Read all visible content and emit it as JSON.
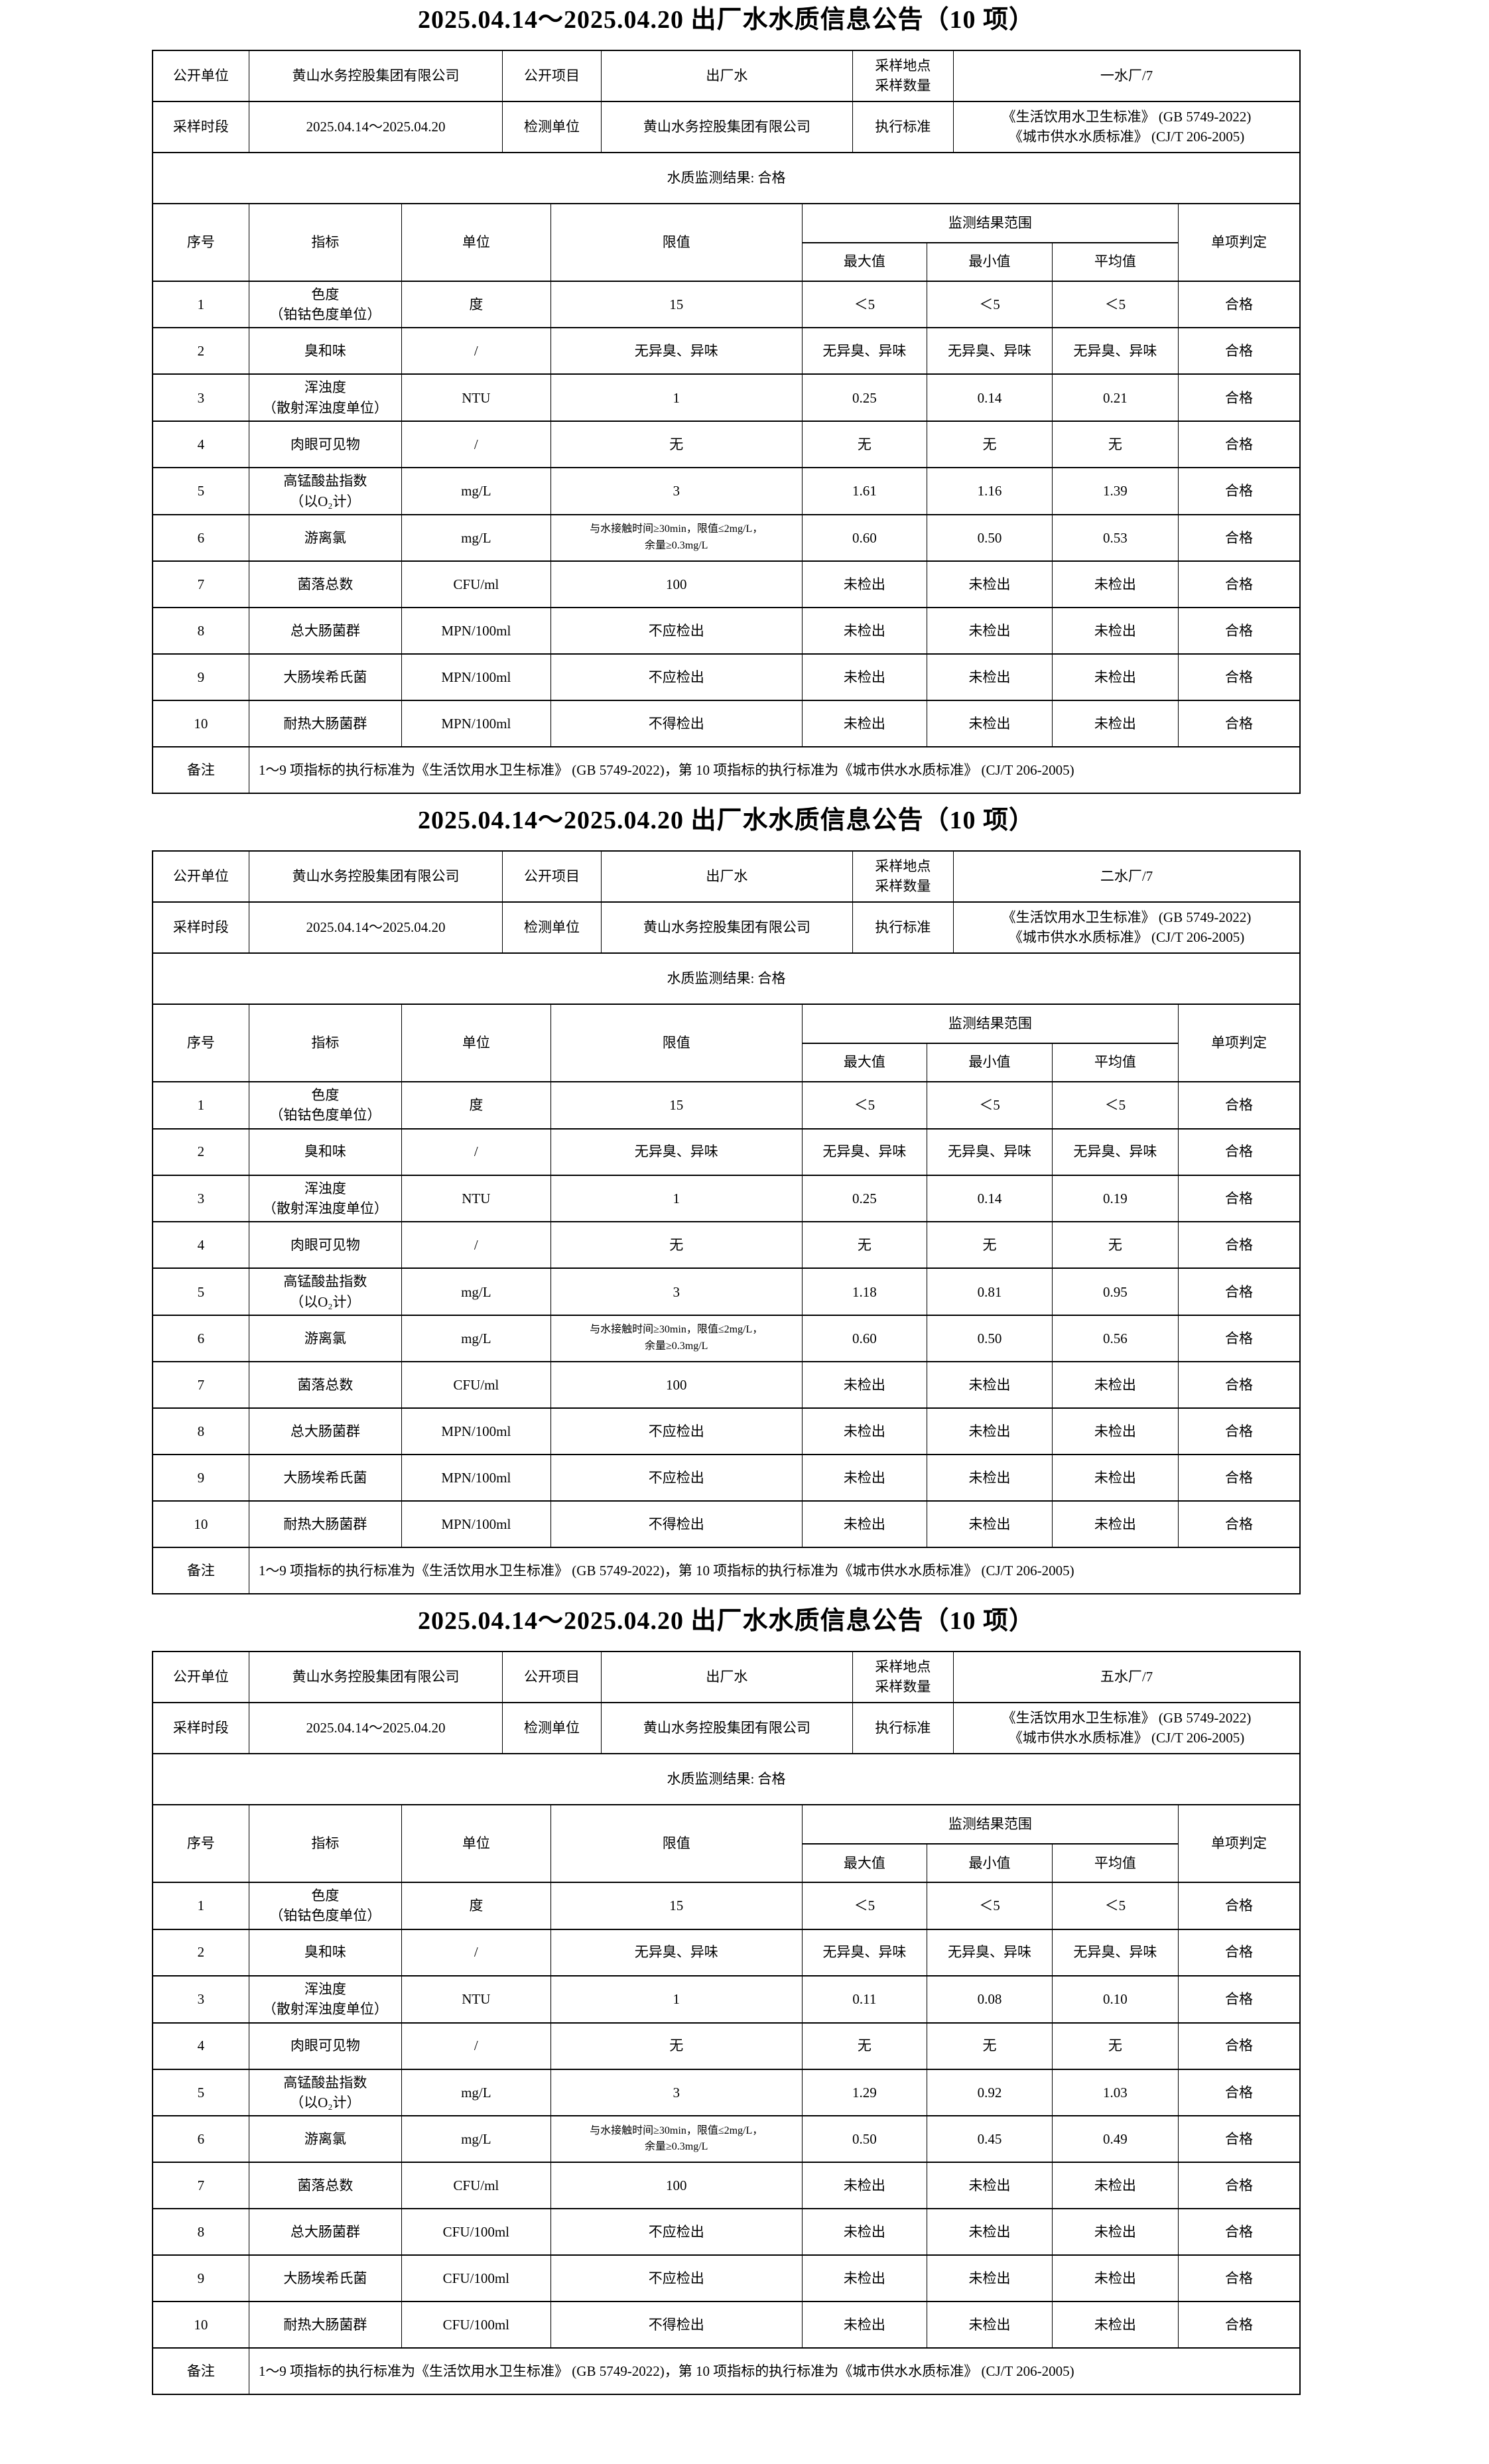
{
  "page": {
    "background": "#ffffff",
    "text_color": "#000000",
    "border_color": "#000000"
  },
  "announcements": [
    {
      "title": "2025.04.14～2025.04.20 出厂水水质信息公告（10 项）",
      "info": {
        "public_unit_label": "公开单位",
        "public_unit_value": "黄山水务控股集团有限公司",
        "project_label": "公开项目",
        "project_value": "出厂水",
        "sampling_label": "采样地点\n采样数量",
        "sampling_value": "一水厂/7",
        "period_label": "采样时段",
        "period_value": "2025.04.14～2025.04.20",
        "test_unit_label": "检测单位",
        "test_unit_value": "黄山水务控股集团有限公司",
        "standard_label": "执行标准",
        "standard_value": "《生活饮用水卫生标准》 (GB 5749-2022)\n《城市供水水质标准》 (CJ/T 206-2005)",
        "result_text": "水质监测结果: 合格"
      },
      "table": {
        "headers": {
          "seq": "序号",
          "indicator": "指标",
          "unit": "单位",
          "limit": "限值",
          "range_group": "监测结果范围",
          "max": "最大值",
          "min": "最小值",
          "avg": "平均值",
          "verdict": "单项判定"
        },
        "rows": [
          {
            "seq": "1",
            "indicator": "色度\n（铂钴色度单位）",
            "unit": "度",
            "limit": "15",
            "max": "＜5",
            "min": "＜5",
            "avg": "＜5",
            "verdict": "合格"
          },
          {
            "seq": "2",
            "indicator": "臭和味",
            "unit": "/",
            "limit": "无异臭、异味",
            "max": "无异臭、异味",
            "min": "无异臭、异味",
            "avg": "无异臭、异味",
            "verdict": "合格"
          },
          {
            "seq": "3",
            "indicator": "浑浊度\n（散射浑浊度单位）",
            "unit": "NTU",
            "limit": "1",
            "max": "0.25",
            "min": "0.14",
            "avg": "0.21",
            "verdict": "合格"
          },
          {
            "seq": "4",
            "indicator": "肉眼可见物",
            "unit": "/",
            "limit": "无",
            "max": "无",
            "min": "无",
            "avg": "无",
            "verdict": "合格"
          },
          {
            "seq": "5",
            "indicator": "高锰酸盐指数\n（以O₂计）",
            "unit": "mg/L",
            "limit": "3",
            "max": "1.61",
            "min": "1.16",
            "avg": "1.39",
            "verdict": "合格"
          },
          {
            "seq": "6",
            "indicator": "游离氯",
            "unit": "mg/L",
            "limit": "与水接触时间≥30min，限值≤2mg/L，\n余量≥0.3mg/L",
            "max": "0.60",
            "min": "0.50",
            "avg": "0.53",
            "verdict": "合格"
          },
          {
            "seq": "7",
            "indicator": "菌落总数",
            "unit": "CFU/ml",
            "limit": "100",
            "max": "未检出",
            "min": "未检出",
            "avg": "未检出",
            "verdict": "合格"
          },
          {
            "seq": "8",
            "indicator": "总大肠菌群",
            "unit": "MPN/100ml",
            "limit": "不应检出",
            "max": "未检出",
            "min": "未检出",
            "avg": "未检出",
            "verdict": "合格"
          },
          {
            "seq": "9",
            "indicator": "大肠埃希氏菌",
            "unit": "MPN/100ml",
            "limit": "不应检出",
            "max": "未检出",
            "min": "未检出",
            "avg": "未检出",
            "verdict": "合格"
          },
          {
            "seq": "10",
            "indicator": "耐热大肠菌群",
            "unit": "MPN/100ml",
            "limit": "不得检出",
            "max": "未检出",
            "min": "未检出",
            "avg": "未检出",
            "verdict": "合格"
          }
        ],
        "remark_label": "备注",
        "remark_text": "1～9 项指标的执行标准为《生活饮用水卫生标准》 (GB 5749-2022)，第 10 项指标的执行标准为《城市供水水质标准》 (CJ/T 206-2005)"
      }
    },
    {
      "title": "2025.04.14～2025.04.20 出厂水水质信息公告（10 项）",
      "info": {
        "public_unit_label": "公开单位",
        "public_unit_value": "黄山水务控股集团有限公司",
        "project_label": "公开项目",
        "project_value": "出厂水",
        "sampling_label": "采样地点\n采样数量",
        "sampling_value": "二水厂/7",
        "period_label": "采样时段",
        "period_value": "2025.04.14～2025.04.20",
        "test_unit_label": "检测单位",
        "test_unit_value": "黄山水务控股集团有限公司",
        "standard_label": "执行标准",
        "standard_value": "《生活饮用水卫生标准》 (GB 5749-2022)\n《城市供水水质标准》 (CJ/T 206-2005)",
        "result_text": "水质监测结果: 合格"
      },
      "table": {
        "headers": {
          "seq": "序号",
          "indicator": "指标",
          "unit": "单位",
          "limit": "限值",
          "range_group": "监测结果范围",
          "max": "最大值",
          "min": "最小值",
          "avg": "平均值",
          "verdict": "单项判定"
        },
        "rows": [
          {
            "seq": "1",
            "indicator": "色度\n（铂钴色度单位）",
            "unit": "度",
            "limit": "15",
            "max": "＜5",
            "min": "＜5",
            "avg": "＜5",
            "verdict": "合格"
          },
          {
            "seq": "2",
            "indicator": "臭和味",
            "unit": "/",
            "limit": "无异臭、异味",
            "max": "无异臭、异味",
            "min": "无异臭、异味",
            "avg": "无异臭、异味",
            "verdict": "合格"
          },
          {
            "seq": "3",
            "indicator": "浑浊度\n（散射浑浊度单位）",
            "unit": "NTU",
            "limit": "1",
            "max": "0.25",
            "min": "0.14",
            "avg": "0.19",
            "verdict": "合格"
          },
          {
            "seq": "4",
            "indicator": "肉眼可见物",
            "unit": "/",
            "limit": "无",
            "max": "无",
            "min": "无",
            "avg": "无",
            "verdict": "合格"
          },
          {
            "seq": "5",
            "indicator": "高锰酸盐指数\n（以O₂计）",
            "unit": "mg/L",
            "limit": "3",
            "max": "1.18",
            "min": "0.81",
            "avg": "0.95",
            "verdict": "合格"
          },
          {
            "seq": "6",
            "indicator": "游离氯",
            "unit": "mg/L",
            "limit": "与水接触时间≥30min，限值≤2mg/L，\n余量≥0.3mg/L",
            "max": "0.60",
            "min": "0.50",
            "avg": "0.56",
            "verdict": "合格"
          },
          {
            "seq": "7",
            "indicator": "菌落总数",
            "unit": "CFU/ml",
            "limit": "100",
            "max": "未检出",
            "min": "未检出",
            "avg": "未检出",
            "verdict": "合格"
          },
          {
            "seq": "8",
            "indicator": "总大肠菌群",
            "unit": "MPN/100ml",
            "limit": "不应检出",
            "max": "未检出",
            "min": "未检出",
            "avg": "未检出",
            "verdict": "合格"
          },
          {
            "seq": "9",
            "indicator": "大肠埃希氏菌",
            "unit": "MPN/100ml",
            "limit": "不应检出",
            "max": "未检出",
            "min": "未检出",
            "avg": "未检出",
            "verdict": "合格"
          },
          {
            "seq": "10",
            "indicator": "耐热大肠菌群",
            "unit": "MPN/100ml",
            "limit": "不得检出",
            "max": "未检出",
            "min": "未检出",
            "avg": "未检出",
            "verdict": "合格"
          }
        ],
        "remark_label": "备注",
        "remark_text": "1～9 项指标的执行标准为《生活饮用水卫生标准》 (GB 5749-2022)，第 10 项指标的执行标准为《城市供水水质标准》 (CJ/T 206-2005)"
      }
    },
    {
      "title": "2025.04.14～2025.04.20 出厂水水质信息公告（10 项）",
      "info": {
        "public_unit_label": "公开单位",
        "public_unit_value": "黄山水务控股集团有限公司",
        "project_label": "公开项目",
        "project_value": "出厂水",
        "sampling_label": "采样地点\n采样数量",
        "sampling_value": "五水厂/7",
        "period_label": "采样时段",
        "period_value": "2025.04.14～2025.04.20",
        "test_unit_label": "检测单位",
        "test_unit_value": "黄山水务控股集团有限公司",
        "standard_label": "执行标准",
        "standard_value": "《生活饮用水卫生标准》 (GB 5749-2022)\n《城市供水水质标准》 (CJ/T 206-2005)",
        "result_text": "水质监测结果: 合格"
      },
      "table": {
        "headers": {
          "seq": "序号",
          "indicator": "指标",
          "unit": "单位",
          "limit": "限值",
          "range_group": "监测结果范围",
          "max": "最大值",
          "min": "最小值",
          "avg": "平均值",
          "verdict": "单项判定"
        },
        "rows": [
          {
            "seq": "1",
            "indicator": "色度\n（铂钴色度单位）",
            "unit": "度",
            "limit": "15",
            "max": "＜5",
            "min": "＜5",
            "avg": "＜5",
            "verdict": "合格"
          },
          {
            "seq": "2",
            "indicator": "臭和味",
            "unit": "/",
            "limit": "无异臭、异味",
            "max": "无异臭、异味",
            "min": "无异臭、异味",
            "avg": "无异臭、异味",
            "verdict": "合格"
          },
          {
            "seq": "3",
            "indicator": "浑浊度\n（散射浑浊度单位）",
            "unit": "NTU",
            "limit": "1",
            "max": "0.11",
            "min": "0.08",
            "avg": "0.10",
            "verdict": "合格"
          },
          {
            "seq": "4",
            "indicator": "肉眼可见物",
            "unit": "/",
            "limit": "无",
            "max": "无",
            "min": "无",
            "avg": "无",
            "verdict": "合格"
          },
          {
            "seq": "5",
            "indicator": "高锰酸盐指数\n（以O₂计）",
            "unit": "mg/L",
            "limit": "3",
            "max": "1.29",
            "min": "0.92",
            "avg": "1.03",
            "verdict": "合格"
          },
          {
            "seq": "6",
            "indicator": "游离氯",
            "unit": "mg/L",
            "limit": "与水接触时间≥30min，限值≤2mg/L，\n余量≥0.3mg/L",
            "max": "0.50",
            "min": "0.45",
            "avg": "0.49",
            "verdict": "合格"
          },
          {
            "seq": "7",
            "indicator": "菌落总数",
            "unit": "CFU/ml",
            "limit": "100",
            "max": "未检出",
            "min": "未检出",
            "avg": "未检出",
            "verdict": "合格"
          },
          {
            "seq": "8",
            "indicator": "总大肠菌群",
            "unit": "CFU/100ml",
            "limit": "不应检出",
            "max": "未检出",
            "min": "未检出",
            "avg": "未检出",
            "verdict": "合格"
          },
          {
            "seq": "9",
            "indicator": "大肠埃希氏菌",
            "unit": "CFU/100ml",
            "limit": "不应检出",
            "max": "未检出",
            "min": "未检出",
            "avg": "未检出",
            "verdict": "合格"
          },
          {
            "seq": "10",
            "indicator": "耐热大肠菌群",
            "unit": "CFU/100ml",
            "limit": "不得检出",
            "max": "未检出",
            "min": "未检出",
            "avg": "未检出",
            "verdict": "合格"
          }
        ],
        "remark_label": "备注",
        "remark_text": "1～9 项指标的执行标准为《生活饮用水卫生标准》 (GB 5749-2022)，第 10 项指标的执行标准为《城市供水水质标准》 (CJ/T 206-2005)"
      }
    }
  ]
}
